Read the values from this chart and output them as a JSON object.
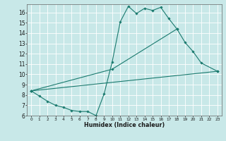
{
  "xlabel": "Humidex (Indice chaleur)",
  "xlim": [
    -0.5,
    23.5
  ],
  "ylim": [
    6,
    16.8
  ],
  "yticks": [
    6,
    7,
    8,
    9,
    10,
    11,
    12,
    13,
    14,
    15,
    16
  ],
  "xticks": [
    0,
    1,
    2,
    3,
    4,
    5,
    6,
    7,
    8,
    9,
    10,
    11,
    12,
    13,
    14,
    15,
    16,
    17,
    18,
    19,
    20,
    21,
    22,
    23
  ],
  "bg_color": "#c8e8e8",
  "grid_color": "#ffffff",
  "line_color": "#1a7a6e",
  "line1_x": [
    0,
    1,
    2,
    3,
    4,
    5,
    6,
    7,
    8,
    9,
    10,
    11,
    12,
    13,
    14,
    15,
    16,
    17,
    18
  ],
  "line1_y": [
    8.4,
    7.9,
    7.4,
    7.0,
    6.8,
    6.5,
    6.4,
    6.4,
    6.0,
    8.1,
    11.2,
    15.1,
    16.6,
    15.9,
    16.4,
    16.2,
    16.5,
    15.4,
    14.4
  ],
  "line2_x": [
    0,
    10,
    18,
    19,
    20,
    21,
    23
  ],
  "line2_y": [
    8.4,
    10.5,
    14.4,
    13.1,
    12.2,
    11.1,
    10.3
  ],
  "line3_x": [
    0,
    23
  ],
  "line3_y": [
    8.4,
    10.3
  ]
}
